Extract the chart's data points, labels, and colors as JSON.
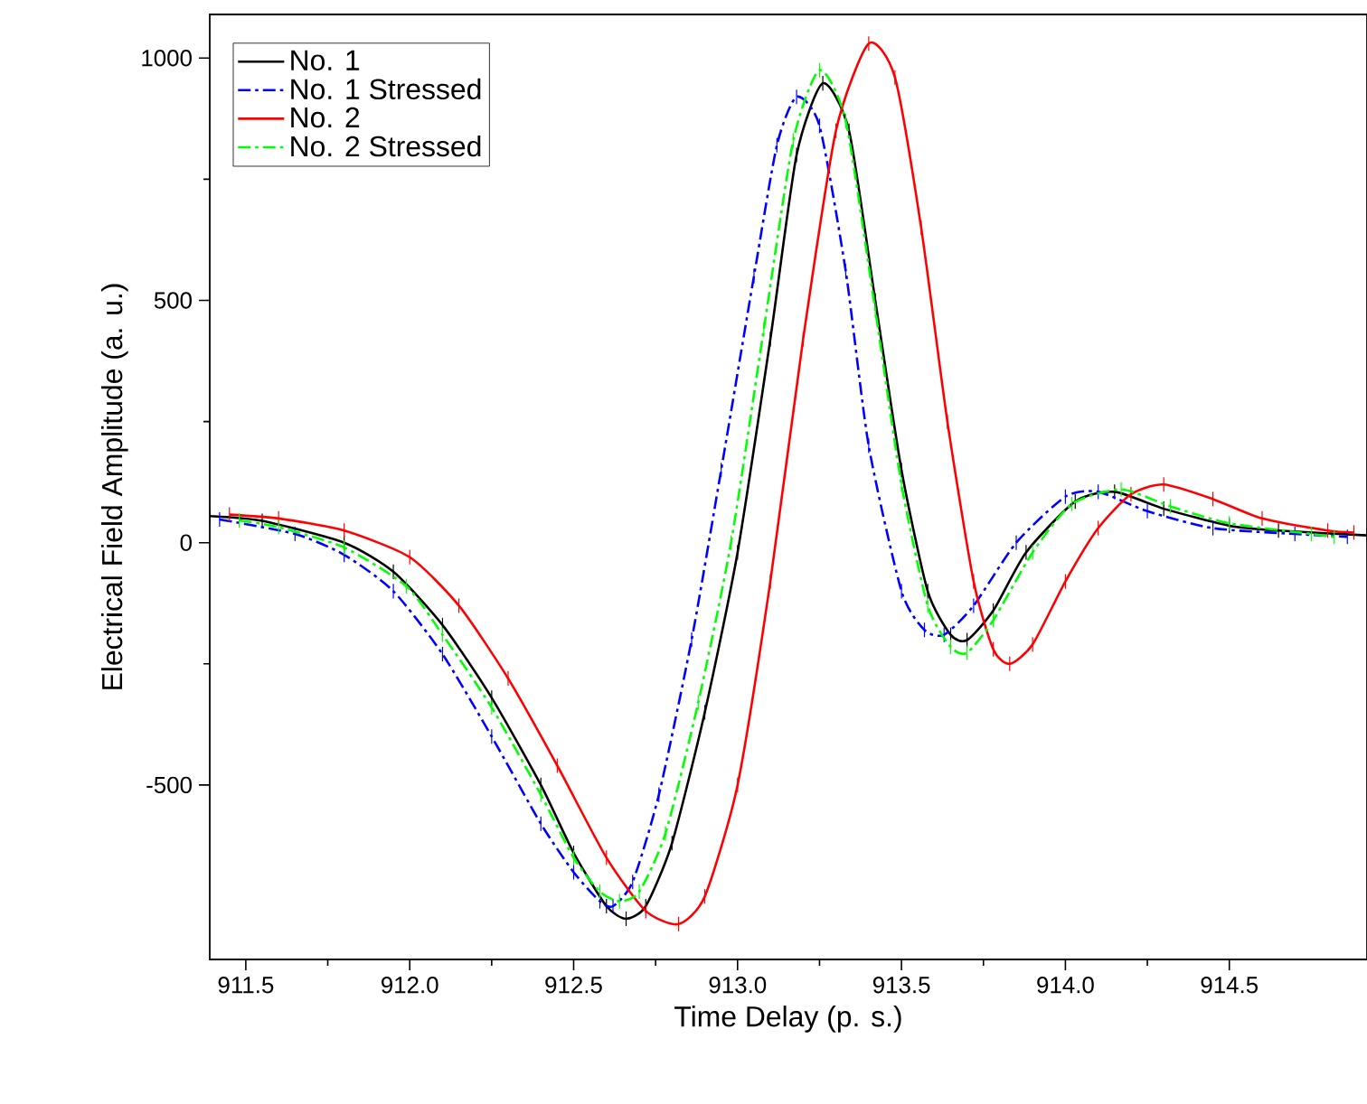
{
  "chart_data": {
    "type": "line",
    "xlabel": "Time Delay (p. s.)",
    "ylabel": "Electrical Field Amplitude (a. u.)",
    "xlim": [
      911.39,
      914.92
    ],
    "ylim": [
      -860,
      1090
    ],
    "xticks": [
      911.5,
      {
        "value": 912,
        "label": "912.0"
      },
      912.5,
      {
        "value": 913,
        "label": "913.0"
      },
      913.5,
      {
        "value": 914,
        "label": "914.0"
      },
      914.5
    ],
    "yticks": [
      -500,
      0,
      500,
      1000
    ],
    "legend": "top left",
    "grid": false,
    "marker": "none",
    "series": [
      {
        "name": "No. 1",
        "color": "#000000",
        "line_style": "solid",
        "x": [
          911.39,
          911.55,
          911.8,
          911.95,
          912.1,
          912.25,
          912.4,
          912.5,
          912.6,
          912.66,
          912.72,
          912.8,
          912.9,
          913.0,
          913.1,
          913.18,
          913.26,
          913.34,
          913.42,
          913.5,
          913.58,
          913.65,
          913.7,
          913.78,
          913.88,
          914.03,
          914.15,
          914.3,
          914.5,
          914.65,
          914.92
        ],
        "values": [
          55,
          45,
          0,
          -60,
          -170,
          -320,
          -500,
          -640,
          -750,
          -776,
          -750,
          -620,
          -350,
          -20,
          420,
          800,
          948,
          850,
          500,
          150,
          -100,
          -190,
          -201,
          -140,
          -20,
          85,
          105,
          70,
          35,
          25,
          15
        ],
        "errors": [
          15,
          15,
          15,
          15,
          15,
          15,
          15,
          15,
          15,
          15,
          15,
          15,
          15,
          15,
          15,
          15,
          15,
          15,
          15,
          15,
          15,
          15,
          15,
          15,
          15,
          15,
          15,
          15,
          15,
          15,
          15
        ]
      },
      {
        "name": "No. 1 Stressed",
        "color": "#0000ff",
        "line_style": "dashdot",
        "x": [
          911.42,
          911.65,
          911.8,
          911.95,
          912.1,
          912.25,
          912.4,
          912.5,
          912.58,
          912.62,
          912.68,
          912.76,
          912.86,
          912.95,
          913.05,
          913.12,
          913.18,
          913.25,
          913.33,
          913.4,
          913.5,
          913.57,
          913.63,
          913.72,
          913.85,
          914.0,
          914.1,
          914.25,
          914.45,
          914.7,
          914.86
        ],
        "values": [
          48,
          18,
          -25,
          -100,
          -230,
          -400,
          -580,
          -680,
          -740,
          -750,
          -700,
          -520,
          -200,
          150,
          550,
          820,
          920,
          860,
          560,
          200,
          -100,
          -180,
          -190,
          -130,
          0,
          95,
          105,
          65,
          30,
          18,
          12
        ],
        "errors": [
          15,
          15,
          15,
          15,
          15,
          15,
          15,
          15,
          15,
          15,
          15,
          15,
          15,
          15,
          15,
          15,
          15,
          15,
          15,
          15,
          15,
          15,
          15,
          15,
          15,
          15,
          15,
          15,
          15,
          15,
          15
        ]
      },
      {
        "name": "No. 2",
        "color": "#ff0000",
        "line_style": "solid",
        "x": [
          911.45,
          911.6,
          911.8,
          912.0,
          912.15,
          912.3,
          912.45,
          912.6,
          912.72,
          912.82,
          912.9,
          913.0,
          913.1,
          913.2,
          913.3,
          913.4,
          913.48,
          913.56,
          913.64,
          913.72,
          913.78,
          913.83,
          913.9,
          914.0,
          914.1,
          914.2,
          914.3,
          914.45,
          914.6,
          914.8,
          914.88
        ],
        "values": [
          58,
          50,
          25,
          -30,
          -130,
          -280,
          -460,
          -650,
          -760,
          -787,
          -730,
          -500,
          -80,
          420,
          850,
          1030,
          960,
          650,
          250,
          -80,
          -220,
          -250,
          -210,
          -80,
          30,
          100,
          120,
          90,
          50,
          25,
          21
        ],
        "errors": [
          15,
          15,
          15,
          15,
          15,
          15,
          15,
          15,
          15,
          15,
          15,
          15,
          15,
          15,
          15,
          15,
          15,
          15,
          15,
          15,
          15,
          15,
          15,
          15,
          15,
          15,
          15,
          15,
          15,
          15,
          15
        ]
      },
      {
        "name": "No. 2 Stressed",
        "color": "#00ff00",
        "line_style": "dashdot",
        "x": [
          911.48,
          911.6,
          911.8,
          911.99,
          912.1,
          912.25,
          912.4,
          912.5,
          912.58,
          912.64,
          912.7,
          912.78,
          912.88,
          912.98,
          913.08,
          913.17,
          913.25,
          913.33,
          913.42,
          913.5,
          913.58,
          913.65,
          913.7,
          913.78,
          913.9,
          914.02,
          914.17,
          914.32,
          914.5,
          914.75,
          914.82
        ],
        "values": [
          46,
          32,
          -10,
          -90,
          -190,
          -340,
          -520,
          -650,
          -720,
          -740,
          -720,
          -600,
          -330,
          0,
          440,
          830,
          975,
          870,
          480,
          120,
          -130,
          -215,
          -227,
          -160,
          -20,
          80,
          110,
          75,
          40,
          18,
          12
        ],
        "errors": [
          15,
          15,
          15,
          15,
          15,
          15,
          15,
          15,
          15,
          15,
          15,
          15,
          15,
          15,
          15,
          15,
          15,
          15,
          15,
          15,
          15,
          15,
          15,
          15,
          15,
          15,
          15,
          15,
          15,
          15,
          15
        ]
      }
    ]
  }
}
